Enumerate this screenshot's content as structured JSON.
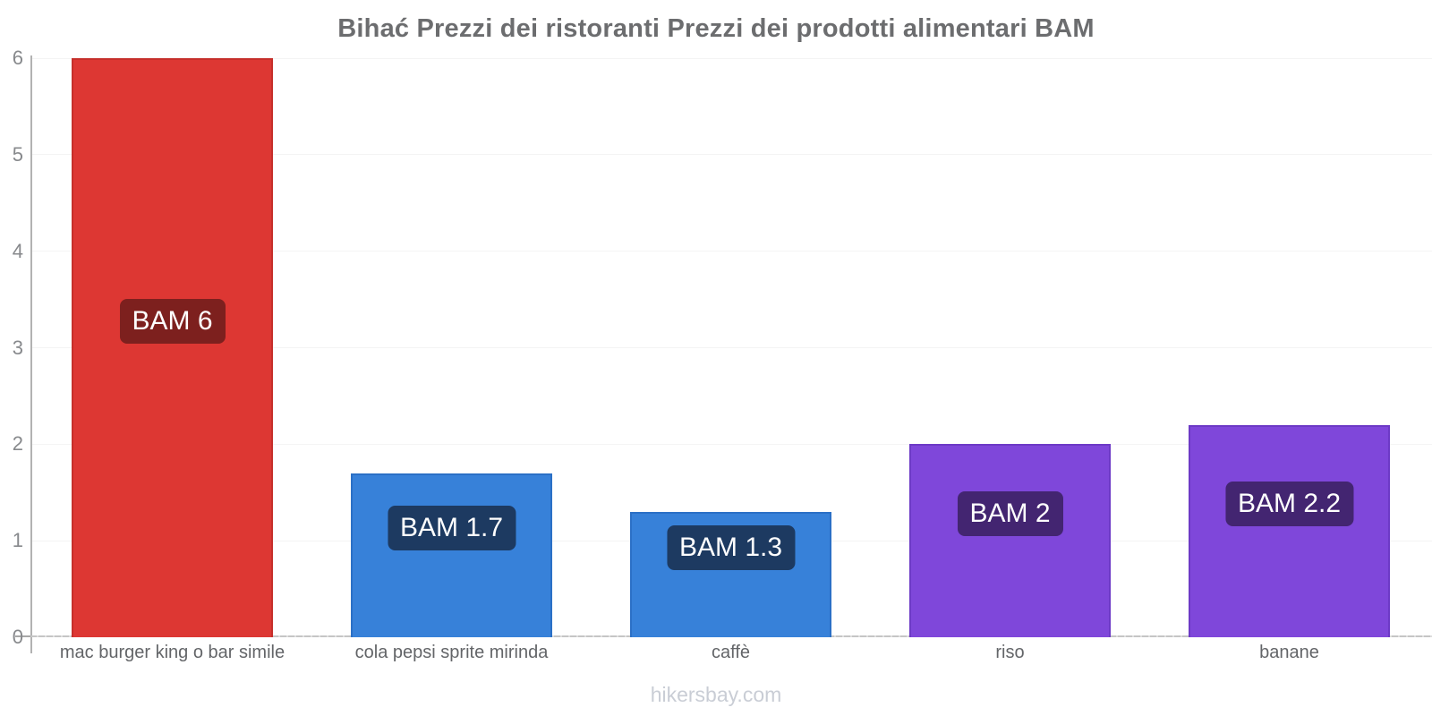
{
  "chart_data": {
    "type": "bar",
    "title": "Bihać Prezzi dei ristoranti Prezzi dei prodotti alimentari BAM",
    "categories": [
      "mac burger king o bar simile",
      "cola pepsi sprite mirinda",
      "caffè",
      "riso",
      "banane"
    ],
    "values": [
      6,
      1.7,
      1.3,
      2,
      2.2
    ],
    "value_labels": [
      "BAM 6",
      "BAM 1.7",
      "BAM 1.3",
      "BAM 2",
      "BAM 2.2"
    ],
    "xlabel": "",
    "ylabel": "",
    "ylim": [
      0,
      6
    ],
    "yticks": [
      0,
      1,
      2,
      3,
      4,
      5,
      6
    ],
    "grid": "horizontal-light",
    "legend": "none",
    "bar_colors": [
      "#dd3733",
      "#3781d9",
      "#3781d9",
      "#7f47da",
      "#7f47da"
    ],
    "bar_border_colors": [
      "#c62f2b",
      "#2b70c6",
      "#2b70c6",
      "#6d3ac6",
      "#6d3ac6"
    ],
    "label_bg_colors": [
      "#7d201e",
      "#1d3a61",
      "#1d3a61",
      "#432571",
      "#432571"
    ],
    "label_text_color": "#ffffff",
    "currency_prefix": "BAM"
  },
  "footer": {
    "text": "hikersbay.com"
  }
}
